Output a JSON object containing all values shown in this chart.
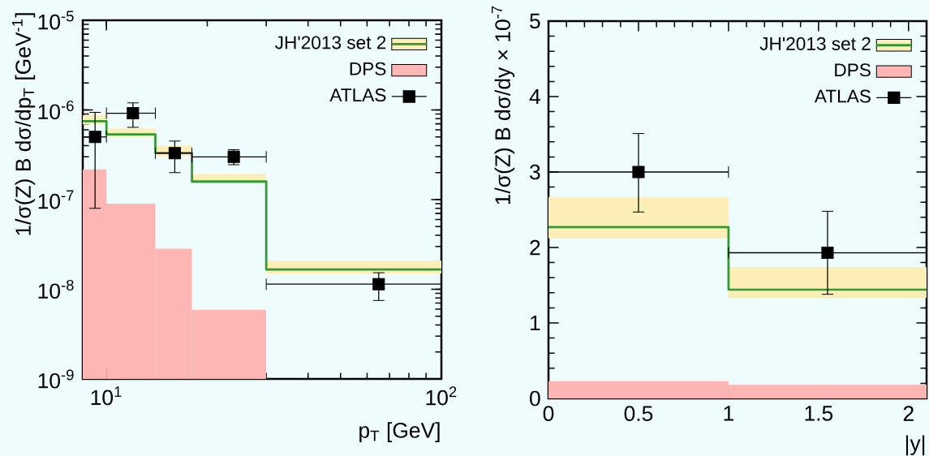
{
  "chart_data": [
    {
      "type": "step",
      "ylabel": "1/σ(Z) B dσ/dp$_{T}$ [GeV$^{-1}$]",
      "xlabel": "p$_{T}$ [GeV]",
      "log": "xy",
      "xlim": [
        8.5,
        100
      ],
      "ylim": [
        1e-09,
        1e-05
      ],
      "xticks": [
        {
          "value": 10,
          "label": "10$^{1}$"
        },
        {
          "value": 100,
          "label": "10$^{2}$"
        }
      ],
      "yticks": [
        {
          "value": 1e-09,
          "label": "10$^{-9}$"
        },
        {
          "value": 1e-08,
          "label": "10$^{-8}$"
        },
        {
          "value": 1e-07,
          "label": "10$^{-7}$"
        },
        {
          "value": 1e-06,
          "label": "10$^{-6}$"
        },
        {
          "value": 1e-05,
          "label": "10$^{-5}$"
        }
      ],
      "legend": "top right",
      "series": [
        {
          "name": "JH'2013 set 2",
          "color": "#339933",
          "x": [
            8.5,
            10,
            14,
            18,
            30,
            100
          ],
          "values": [
            7.5e-07,
            5.35e-07,
            3.3e-07,
            1.59e-07,
            1.66e-08,
            1.66e-08
          ],
          "lower": [
            6.9e-07,
            5e-07,
            3.05e-07,
            1.52e-07,
            1.5e-08,
            1.5e-08
          ],
          "upper": [
            8.7e-07,
            6.2e-07,
            4e-07,
            1.93e-07,
            2.09e-08,
            2.09e-08
          ]
        },
        {
          "name": "DPS",
          "type": "histogram",
          "color": "#fdb6b4",
          "bins": [
            8.5,
            10,
            14,
            18,
            30
          ],
          "values": [
            2.17e-07,
            9e-08,
            2.84e-08,
            5.9e-09
          ]
        },
        {
          "name": "ATLAS",
          "type": "scatter",
          "marker": "square",
          "color": "#000000",
          "x": [
            9.25,
            12,
            16,
            24,
            65
          ],
          "values": [
            5e-07,
            9.2e-07,
            3.3e-07,
            3e-07,
            1.14e-08
          ],
          "errors": [
            [
              8e-08,
              9.4e-07
            ],
            [
              6.4e-07,
              1.2e-06
            ],
            [
              2e-07,
              4.5e-07
            ],
            [
              2.45e-07,
              3.6e-07
            ],
            [
              7.5e-09,
              1.53e-08
            ]
          ],
          "xerrors": [
            [
              8.5,
              10
            ],
            [
              10,
              14
            ],
            [
              14,
              18
            ],
            [
              18,
              30
            ],
            [
              30,
              100
            ]
          ]
        }
      ]
    },
    {
      "type": "step",
      "ylabel": "1/σ(Z) B dσ/dy × 10$^{-7}$",
      "xlabel": "|y|",
      "xlim": [
        0,
        2.1
      ],
      "ylim": [
        0,
        5
      ],
      "xticks": [
        0,
        0.5,
        1,
        1.5,
        2
      ],
      "yticks": [
        0,
        1,
        2,
        3,
        4,
        5
      ],
      "legend": "top right",
      "series": [
        {
          "name": "JH'2013 set 2",
          "color": "#339933",
          "x": [
            0,
            1,
            2.1
          ],
          "values": [
            2.27,
            1.44,
            1.44
          ],
          "lower": [
            2.12,
            1.33,
            1.33
          ],
          "upper": [
            2.67,
            1.74,
            1.74
          ]
        },
        {
          "name": "DPS",
          "type": "histogram",
          "color": "#fdb6b4",
          "bins": [
            0,
            1,
            2.1
          ],
          "values": [
            0.23,
            0.18
          ]
        },
        {
          "name": "ATLAS",
          "type": "scatter",
          "marker": "square",
          "color": "#000000",
          "x": [
            0.5,
            1.55
          ],
          "values": [
            3.0,
            1.93
          ],
          "errors": [
            [
              2.47,
              3.51
            ],
            [
              1.38,
              2.48
            ]
          ],
          "xerrors": [
            [
              0,
              1
            ],
            [
              1,
              2.1
            ]
          ]
        }
      ]
    }
  ]
}
